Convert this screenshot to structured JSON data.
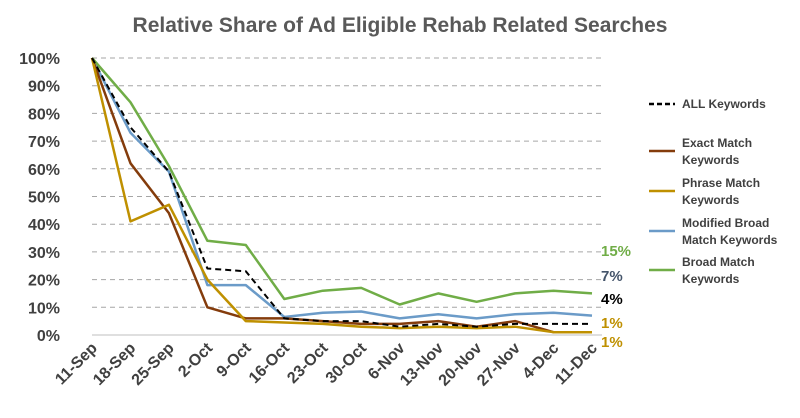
{
  "chart_data": {
    "type": "line",
    "title": "Relative Share of Ad Eligible Rehab Related Searches",
    "xlabel": "",
    "ylabel": "",
    "categories": [
      "11-Sep",
      "18-Sep",
      "25-Sep",
      "2-Oct",
      "9-Oct",
      "16-Oct",
      "23-Oct",
      "30-Oct",
      "6-Nov",
      "13-Nov",
      "20-Nov",
      "27-Nov",
      "4-Dec",
      "11-Dec"
    ],
    "ylim": [
      0,
      100
    ],
    "yticks": [
      0,
      10,
      20,
      30,
      40,
      50,
      60,
      70,
      80,
      90,
      100
    ],
    "ytick_labels": [
      "0%",
      "10%",
      "20%",
      "30%",
      "40%",
      "50%",
      "60%",
      "70%",
      "80%",
      "90%",
      "100%"
    ],
    "grid": "horizontal dashed",
    "legend_position": "right",
    "series": [
      {
        "name": "ALL Keywords",
        "legend_lines": [
          "ALL Keywords"
        ],
        "color": "#000000",
        "dashed": true,
        "values": [
          100,
          75,
          59,
          24,
          23,
          6,
          5,
          5,
          3,
          4,
          3,
          4,
          4,
          4
        ],
        "end_label": "4%"
      },
      {
        "name": "Exact Match Keywords",
        "legend_lines": [
          "Exact Match",
          "Keywords"
        ],
        "color": "#843c0c",
        "dashed": false,
        "values": [
          100,
          62,
          44,
          10,
          6,
          6,
          5,
          4,
          4,
          5,
          3,
          5,
          1,
          1
        ],
        "end_label": "1%"
      },
      {
        "name": "Phrase Match Keywords",
        "legend_lines": [
          "Phrase Match",
          "Keywords"
        ],
        "color": "#bf9000",
        "dashed": false,
        "values": [
          100,
          41,
          47,
          20,
          5,
          4.5,
          4,
          3,
          2.5,
          3,
          2.5,
          3,
          1,
          1
        ],
        "end_label": "1%"
      },
      {
        "name": "Modified Broad Match Keywords",
        "legend_lines": [
          "Modified Broad",
          "Match Keywords"
        ],
        "color": "#6b9bc8",
        "dashed": false,
        "values": [
          100,
          73,
          59,
          18,
          18,
          6.5,
          8,
          8.5,
          6,
          7.5,
          6,
          7.5,
          8,
          7
        ],
        "end_label": "7%"
      },
      {
        "name": "Broad Match Keywords",
        "legend_lines": [
          "Broad Match",
          "Keywords"
        ],
        "color": "#70ad47",
        "dashed": false,
        "values": [
          100,
          84,
          61,
          34,
          32.5,
          13,
          16,
          17,
          11,
          15,
          12,
          15,
          16,
          15
        ],
        "end_label": "15%"
      }
    ]
  },
  "end_label_colors": {
    "ALL Keywords": "#000000",
    "Exact Match Keywords": "#bf9000",
    "Phrase Match Keywords": "#bf9000",
    "Modified Broad Match Keywords": "#44546a",
    "Broad Match Keywords": "#70ad47"
  }
}
